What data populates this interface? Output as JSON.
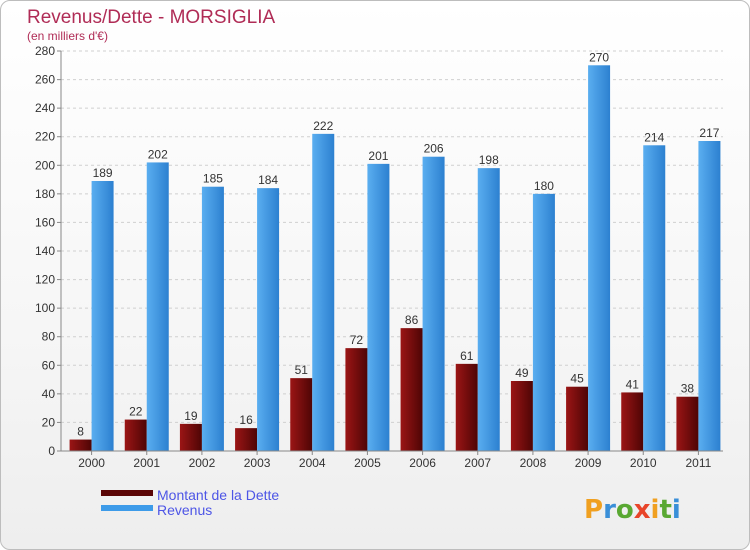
{
  "chart_data": {
    "type": "bar",
    "title": "Revenus/Dette - MORSIGLIA",
    "subtitle": "(en milliers d'€)",
    "categories": [
      "2000",
      "2001",
      "2002",
      "2003",
      "2004",
      "2005",
      "2006",
      "2007",
      "2008",
      "2009",
      "2010",
      "2011"
    ],
    "series": [
      {
        "name": "Montant de la Dette",
        "color": "#7a0c0c",
        "values": [
          8,
          22,
          19,
          16,
          51,
          72,
          86,
          61,
          49,
          45,
          41,
          38
        ]
      },
      {
        "name": "Revenus",
        "color": "#3d9be9",
        "values": [
          189,
          202,
          185,
          184,
          222,
          201,
          206,
          198,
          180,
          270,
          214,
          217
        ]
      }
    ],
    "yticks": [
      0,
      20,
      40,
      60,
      80,
      100,
      120,
      140,
      160,
      180,
      200,
      220,
      240,
      260,
      280
    ],
    "ylim": [
      0,
      280
    ],
    "grid": true,
    "xlabel": "",
    "ylabel": "",
    "legend_position": "bottom-left"
  },
  "logo": {
    "letters": [
      "P",
      "r",
      "o",
      "x",
      "i",
      "t",
      "i"
    ],
    "colors": [
      "#f0a020",
      "#3a8fd8",
      "#59a832",
      "#e8452a",
      "#f0a020",
      "#59a832",
      "#3a8fd8"
    ]
  }
}
